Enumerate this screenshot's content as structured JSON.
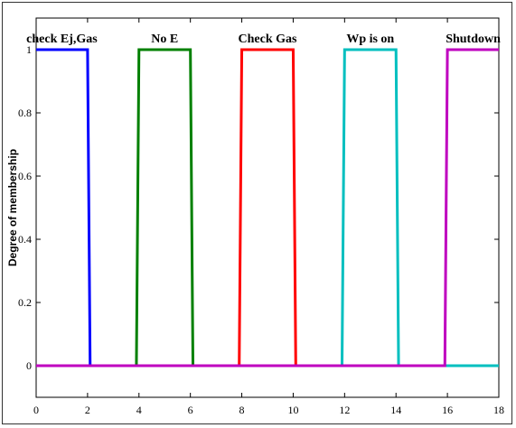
{
  "chart_data": {
    "type": "line",
    "ylabel": "Degree of membership",
    "xlabel": "",
    "title": "",
    "xlim": [
      0,
      18
    ],
    "ylim": [
      -0.1,
      1.1
    ],
    "x_ticks": [
      "0",
      "2",
      "4",
      "6",
      "8",
      "10",
      "12",
      "14",
      "16",
      "18"
    ],
    "y_ticks": [
      "0",
      "0.2",
      "0.4",
      "0.6",
      "0.8",
      "1"
    ],
    "grid": false,
    "series": [
      {
        "name": "check Ej,Gas",
        "color": "#0000ff",
        "x": [
          0,
          2,
          2.1,
          18
        ],
        "y": [
          1,
          1,
          0,
          0
        ]
      },
      {
        "name": "No E",
        "color": "#008000",
        "x": [
          0,
          3.9,
          4,
          6,
          6.1,
          18
        ],
        "y": [
          0,
          0,
          1,
          1,
          0,
          0
        ]
      },
      {
        "name": "Check Gas",
        "color": "#ff0000",
        "x": [
          0,
          7.9,
          8,
          10,
          10.1,
          18
        ],
        "y": [
          0,
          0,
          1,
          1,
          0,
          0
        ]
      },
      {
        "name": "Wp is on",
        "color": "#00bfbf",
        "x": [
          0,
          11.9,
          12,
          14,
          14.1,
          18
        ],
        "y": [
          0,
          0,
          1,
          1,
          0,
          0
        ]
      },
      {
        "name": "Shutdown",
        "color": "#bf00bf",
        "x": [
          0,
          15.9,
          16,
          18
        ],
        "y": [
          0,
          0,
          1,
          1
        ]
      }
    ],
    "labels": [
      {
        "text": "check Ej,Gas",
        "x": 1.0
      },
      {
        "text": "No E",
        "x": 5.0
      },
      {
        "text": "Check Gas",
        "x": 9.0
      },
      {
        "text": "Wp is on",
        "x": 13.0
      },
      {
        "text": "Shutdown",
        "x": 17.0
      }
    ]
  }
}
